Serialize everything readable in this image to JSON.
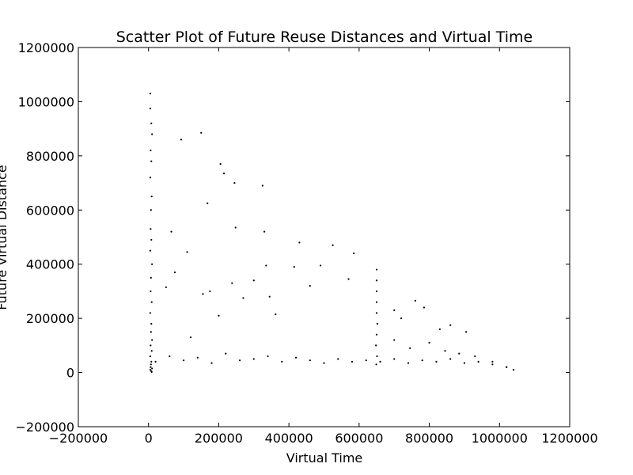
{
  "chart_data": {
    "type": "scatter",
    "title": "Scatter Plot of Future Reuse Distances and Virtual Time",
    "xlabel": "Virtual Time",
    "ylabel": "Future Virtual Distance",
    "xlim": [
      -200000,
      1200000
    ],
    "ylim": [
      -200000,
      1200000
    ],
    "x_ticks": [
      -200000,
      0,
      200000,
      400000,
      600000,
      800000,
      1000000,
      1200000
    ],
    "y_ticks": [
      -200000,
      0,
      200000,
      400000,
      600000,
      800000,
      1000000,
      1200000
    ],
    "x_tick_labels": [
      "−200000",
      "0",
      "200000",
      "400000",
      "600000",
      "800000",
      "1000000",
      "1200000"
    ],
    "y_tick_labels": [
      "−200000",
      "0",
      "200000",
      "400000",
      "600000",
      "800000",
      "1000000",
      "1200000"
    ],
    "grid": false,
    "legend": "none",
    "marker_color": "#000000",
    "series": [
      {
        "x": [
          5000,
          5000,
          8000,
          10000,
          6000,
          8000,
          5000,
          9000,
          7000,
          6000,
          8000,
          5000,
          10000,
          7000,
          6000,
          9000,
          5000,
          8000,
          7000,
          10000,
          6000,
          9000,
          5000,
          8000,
          7000,
          6000,
          10000,
          5000,
          8000,
          9000,
          65000,
          93000,
          120000,
          150000,
          168000,
          205000,
          215000,
          245000,
          248000,
          325000,
          330000,
          415000,
          430000,
          460000,
          490000,
          525000,
          570000,
          585000,
          50000,
          75000,
          110000,
          155000,
          175000,
          200000,
          238000,
          270000,
          300000,
          335000,
          345000,
          362000,
          650000,
          650000,
          650000,
          650000,
          650000,
          652000,
          650000,
          648000,
          651000,
          649000,
          700000,
          720000,
          760000,
          785000,
          830000,
          860000,
          905000,
          700000,
          745000,
          800000,
          845000,
          885000,
          930000,
          980000,
          1020000,
          20000,
          60000,
          100000,
          140000,
          180000,
          220000,
          260000,
          300000,
          340000,
          380000,
          420000,
          460000,
          500000,
          540000,
          580000,
          620000,
          660000,
          700000,
          740000,
          780000,
          820000,
          860000,
          900000,
          940000,
          980000,
          1020000,
          1040000
        ],
        "y": [
          1030000,
          975000,
          920000,
          880000,
          820000,
          780000,
          720000,
          650000,
          600000,
          530000,
          490000,
          450000,
          400000,
          350000,
          300000,
          260000,
          220000,
          180000,
          150000,
          120000,
          100000,
          80000,
          60000,
          40000,
          30000,
          20000,
          15000,
          10000,
          5000,
          2000,
          520000,
          860000,
          130000,
          885000,
          625000,
          770000,
          735000,
          700000,
          535000,
          690000,
          520000,
          390000,
          480000,
          320000,
          395000,
          470000,
          345000,
          440000,
          315000,
          370000,
          445000,
          290000,
          300000,
          210000,
          330000,
          275000,
          340000,
          395000,
          280000,
          215000,
          380000,
          340000,
          300000,
          260000,
          220000,
          180000,
          140000,
          100000,
          60000,
          30000,
          230000,
          200000,
          265000,
          240000,
          160000,
          175000,
          150000,
          120000,
          90000,
          110000,
          80000,
          70000,
          60000,
          40000,
          20000,
          40000,
          60000,
          45000,
          55000,
          35000,
          70000,
          45000,
          50000,
          60000,
          40000,
          55000,
          45000,
          35000,
          50000,
          40000,
          45000,
          40000,
          50000,
          35000,
          45000,
          40000,
          50000,
          35000,
          40000,
          30000,
          20000,
          10000
        ]
      }
    ]
  }
}
